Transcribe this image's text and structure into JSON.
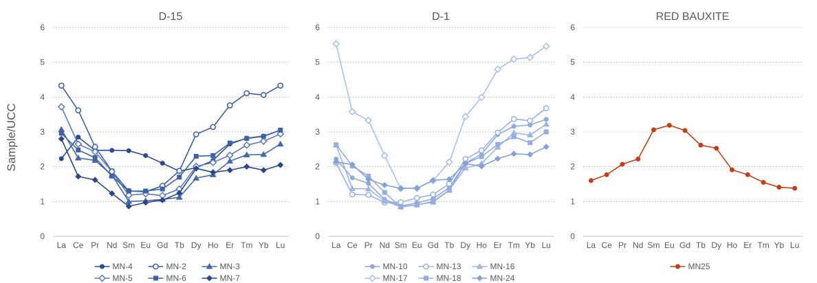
{
  "y_axis_title": "Sample/UCC",
  "chart_data": [
    {
      "type": "line",
      "title": "D-15",
      "categories": [
        "La",
        "Ce",
        "Pr",
        "Nd",
        "Sm",
        "Eu",
        "Gd",
        "Tb",
        "Dy",
        "Ho",
        "Er",
        "Tm",
        "Yb",
        "Lu"
      ],
      "ylim": [
        0,
        6
      ],
      "yticks": [
        "0",
        "1",
        "2",
        "3",
        "4",
        "5",
        "6"
      ],
      "grid": true,
      "legend": "bottom",
      "series": [
        {
          "name": "MN-4",
          "marker": "circle-filled",
          "color": "#2e4d8f",
          "values": [
            2.23,
            2.85,
            2.47,
            2.47,
            2.46,
            2.32,
            2.1,
            1.87,
            1.97,
            2.18,
            2.65,
            2.82,
            2.88,
            3.05
          ]
        },
        {
          "name": "MN-2",
          "marker": "circle-open",
          "color": "#3d5f9e",
          "values": [
            4.33,
            3.62,
            2.57,
            1.87,
            1.3,
            1.28,
            1.45,
            1.88,
            2.93,
            3.14,
            3.76,
            4.11,
            4.06,
            4.33
          ]
        },
        {
          "name": "MN-3",
          "marker": "triangle-filled",
          "color": "#4468a8",
          "values": [
            3.07,
            2.25,
            2.18,
            1.76,
            1.0,
            1.02,
            1.06,
            1.12,
            1.67,
            1.77,
            2.16,
            2.34,
            2.35,
            2.65
          ]
        },
        {
          "name": "MN-5",
          "marker": "diamond-open",
          "color": "#5b7bbd",
          "values": [
            3.72,
            2.65,
            2.43,
            1.86,
            1.18,
            1.22,
            1.17,
            1.36,
            2.01,
            2.12,
            2.33,
            2.62,
            2.73,
            2.94
          ]
        },
        {
          "name": "MN-6",
          "marker": "square-filled",
          "color": "#3f62a3",
          "values": [
            2.96,
            2.48,
            2.26,
            1.73,
            1.3,
            1.3,
            1.36,
            1.7,
            2.3,
            2.32,
            2.68,
            2.81,
            2.87,
            3.05
          ]
        },
        {
          "name": "MN-7",
          "marker": "diamond-filled",
          "color": "#2b4787",
          "values": [
            2.8,
            1.72,
            1.62,
            1.23,
            0.86,
            0.97,
            1.04,
            1.24,
            1.95,
            1.84,
            1.9,
            2.0,
            1.9,
            2.05
          ]
        }
      ]
    },
    {
      "type": "line",
      "title": "D-1",
      "categories": [
        "La",
        "Ce",
        "Pr",
        "Nd",
        "Sm",
        "Eu",
        "Gd",
        "Tb",
        "Dy",
        "Ho",
        "Er",
        "Tm",
        "Yb",
        "Lu"
      ],
      "ylim": [
        0,
        6
      ],
      "yticks": [
        "0",
        "1",
        "2",
        "3",
        "4",
        "5",
        "6"
      ],
      "grid": true,
      "legend": "bottom",
      "series": [
        {
          "name": "MN-10",
          "marker": "circle-filled",
          "color": "#8fa9d9",
          "values": [
            2.22,
            1.68,
            1.52,
            1.06,
            0.87,
            0.96,
            1.08,
            1.4,
            2.1,
            2.36,
            2.92,
            3.16,
            3.2,
            3.36
          ]
        },
        {
          "name": "MN-13",
          "marker": "circle-open",
          "color": "#98b2e0",
          "values": [
            2.11,
            1.2,
            1.19,
            0.97,
            0.98,
            1.1,
            1.2,
            1.51,
            2.22,
            2.47,
            2.98,
            3.37,
            3.32,
            3.68
          ]
        },
        {
          "name": "MN-16",
          "marker": "triangle-filled",
          "color": "#9db6e3",
          "values": [
            2.62,
            1.37,
            1.36,
            1.01,
            0.85,
            0.9,
            1.0,
            1.33,
            1.96,
            2.09,
            2.56,
            2.97,
            2.91,
            3.22
          ]
        },
        {
          "name": "MN-17",
          "marker": "diamond-open",
          "color": "#a9c0ea",
          "values": [
            5.53,
            3.58,
            3.33,
            2.32,
            1.37,
            1.38,
            1.6,
            2.13,
            3.44,
            3.99,
            4.8,
            5.09,
            5.14,
            5.46
          ]
        },
        {
          "name": "MN-18",
          "marker": "square-filled",
          "color": "#93aede",
          "values": [
            2.63,
            2.02,
            1.73,
            1.26,
            0.84,
            0.91,
            0.98,
            1.32,
            2.09,
            2.29,
            2.64,
            2.86,
            2.69,
            3.0
          ]
        },
        {
          "name": "MN-24",
          "marker": "diamond-filled",
          "color": "#86a1d4",
          "values": [
            2.14,
            2.06,
            1.64,
            1.47,
            1.38,
            1.38,
            1.61,
            1.64,
            2.09,
            2.01,
            2.23,
            2.37,
            2.35,
            2.57
          ]
        }
      ]
    },
    {
      "type": "line",
      "title": "RED BAUXITE",
      "categories": [
        "La",
        "Ce",
        "Pr",
        "Nd",
        "Sm",
        "Eu",
        "Gd",
        "Tb",
        "Dy",
        "Ho",
        "Er",
        "Tm",
        "Yb",
        "Lu"
      ],
      "ylim": [
        0,
        6
      ],
      "yticks": [
        "0",
        "1",
        "2",
        "3",
        "4",
        "5",
        "6"
      ],
      "grid": true,
      "legend": "bottom",
      "series": [
        {
          "name": "MN25",
          "marker": "circle-filled",
          "color": "#c0401a",
          "values": [
            1.6,
            1.77,
            2.07,
            2.22,
            3.06,
            3.19,
            3.04,
            2.62,
            2.53,
            1.91,
            1.77,
            1.55,
            1.41,
            1.38
          ]
        }
      ]
    }
  ]
}
